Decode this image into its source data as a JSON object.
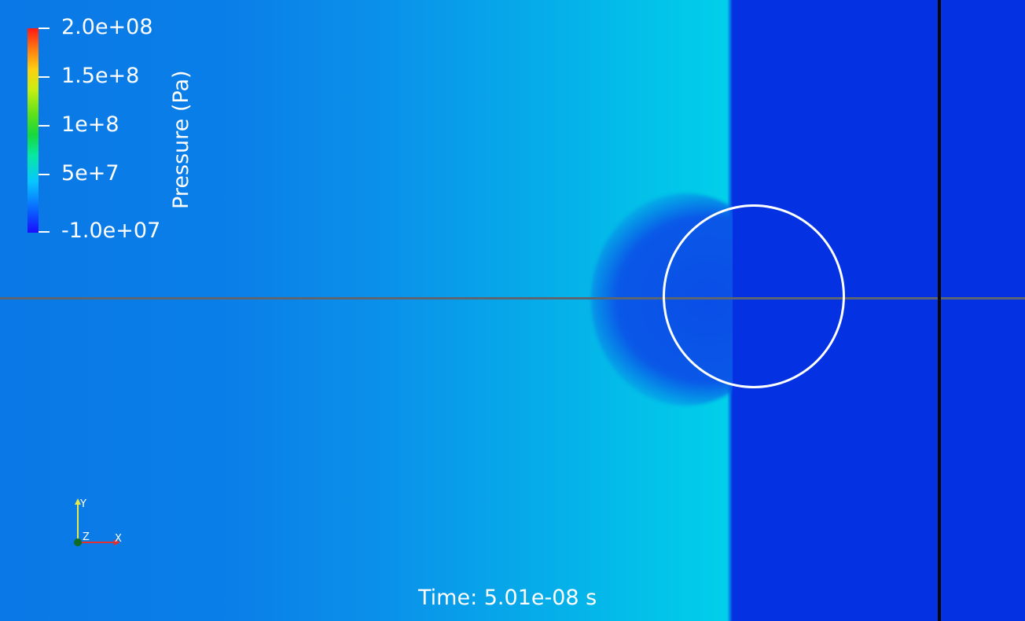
{
  "colorbar": {
    "title": "Pressure (Pa)",
    "ticks": [
      "2.0e+08",
      "1.5e+8",
      "1e+8",
      "5e+7",
      "-1.0e+07"
    ],
    "colormap": [
      "#1a0bff",
      "#07c7ff",
      "#18d83c",
      "#ffcf10",
      "#ff1a14"
    ]
  },
  "time_label": "Time: 5.01e-08 s",
  "orientation_axes": {
    "x": "X",
    "y": "Y",
    "z": "Z"
  },
  "colors": {
    "high_field": "#02d0ea",
    "low_field": "#0432e3",
    "background_field": "#0a7ae8",
    "circle_outline": "#ffffff",
    "centerline": "#5d6570",
    "wall_line": "#060606"
  }
}
